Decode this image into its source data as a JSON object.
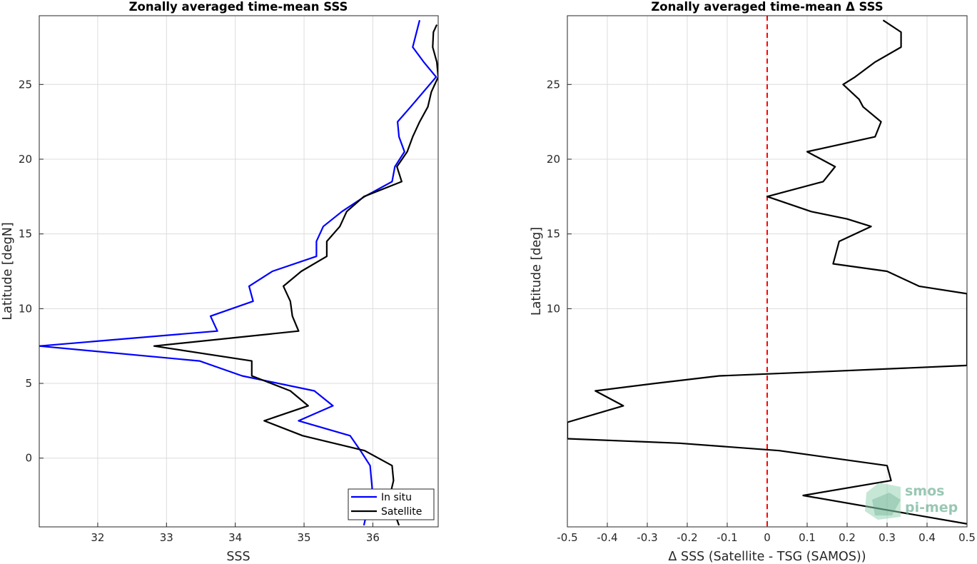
{
  "chart_data": [
    {
      "type": "line",
      "title": "Zonally averaged time-mean SSS",
      "xlabel": "SSS",
      "ylabel": "Latitude [degN]",
      "xlim": [
        31.15,
        36.95
      ],
      "ylim": [
        -4.6,
        29.6
      ],
      "xticks": [
        32,
        33,
        34,
        35,
        36
      ],
      "yticks": [
        0,
        5,
        10,
        15,
        20,
        25
      ],
      "grid": true,
      "legend": "bottom-right",
      "series": [
        {
          "name": "In situ",
          "color": "#0000ff",
          "points": [
            [
              36.68,
              29.3
            ],
            [
              36.58,
              27.5
            ],
            [
              36.74,
              26.5
            ],
            [
              36.92,
              25.5
            ],
            [
              36.55,
              23.5
            ],
            [
              36.36,
              22.5
            ],
            [
              36.38,
              21.5
            ],
            [
              36.46,
              20.5
            ],
            [
              36.32,
              19.5
            ],
            [
              36.28,
              18.5
            ],
            [
              35.88,
              17.5
            ],
            [
              35.55,
              16.5
            ],
            [
              35.28,
              15.5
            ],
            [
              35.18,
              14.5
            ],
            [
              35.18,
              13.5
            ],
            [
              34.54,
              12.5
            ],
            [
              34.2,
              11.5
            ],
            [
              34.26,
              10.5
            ],
            [
              33.64,
              9.5
            ],
            [
              33.74,
              8.5
            ],
            [
              31.15,
              7.5
            ],
            [
              33.48,
              6.5
            ],
            [
              34.1,
              5.5
            ],
            [
              35.15,
              4.5
            ],
            [
              35.42,
              3.5
            ],
            [
              34.92,
              2.5
            ],
            [
              35.67,
              1.5
            ],
            [
              35.82,
              0.5
            ],
            [
              35.96,
              -0.5
            ],
            [
              35.98,
              -1.5
            ],
            [
              36.0,
              -2.5
            ],
            [
              35.92,
              -3.5
            ],
            [
              35.87,
              -4.5
            ]
          ]
        },
        {
          "name": "Satellite",
          "color": "#000000",
          "points": [
            [
              36.93,
              29.0
            ],
            [
              36.88,
              28.5
            ],
            [
              36.87,
              27.5
            ],
            [
              36.93,
              26.5
            ],
            [
              36.95,
              25.5
            ],
            [
              36.85,
              24.5
            ],
            [
              36.8,
              23.5
            ],
            [
              36.68,
              22.5
            ],
            [
              36.58,
              21.5
            ],
            [
              36.5,
              20.5
            ],
            [
              36.35,
              19.5
            ],
            [
              36.42,
              18.5
            ],
            [
              35.87,
              17.5
            ],
            [
              35.62,
              16.5
            ],
            [
              35.52,
              15.5
            ],
            [
              35.33,
              14.5
            ],
            [
              35.33,
              13.5
            ],
            [
              34.96,
              12.5
            ],
            [
              34.7,
              11.5
            ],
            [
              34.8,
              10.5
            ],
            [
              34.83,
              9.5
            ],
            [
              34.92,
              8.5
            ],
            [
              32.82,
              7.5
            ],
            [
              34.24,
              6.5
            ],
            [
              34.24,
              5.5
            ],
            [
              34.8,
              4.5
            ],
            [
              35.06,
              3.5
            ],
            [
              34.42,
              2.5
            ],
            [
              34.98,
              1.5
            ],
            [
              35.88,
              0.5
            ],
            [
              36.28,
              -0.5
            ],
            [
              36.3,
              -1.5
            ],
            [
              36.25,
              -2.5
            ],
            [
              36.3,
              -3.5
            ],
            [
              36.38,
              -4.5
            ]
          ]
        }
      ]
    },
    {
      "type": "line",
      "title": "Zonally averaged time-mean Δ SSS",
      "xlabel": "Δ SSS (Satellite - TSG (SAMOS))",
      "ylabel": "Latitude [deg]",
      "xlim": [
        -0.5,
        0.5
      ],
      "ylim": [
        -4.6,
        29.6
      ],
      "xticks": [
        -0.5,
        -0.4,
        -0.3,
        -0.2,
        -0.1,
        0,
        0.1,
        0.2,
        0.3,
        0.4,
        0.5
      ],
      "xticklabels": [
        "-0.5",
        "-0.4",
        "-0.3",
        "-0.2",
        "-0.1",
        "0",
        "0.1",
        "0.2",
        "0.3",
        "0.4",
        "0.5"
      ],
      "yticks": [
        10,
        15,
        20,
        25
      ],
      "grid": true,
      "reference_line": {
        "x": 0,
        "color": "#ff0000",
        "style": "dashed"
      },
      "series": [
        {
          "color": "#000000",
          "points": [
            [
              0.29,
              29.3
            ],
            [
              0.335,
              28.5
            ],
            [
              0.335,
              27.5
            ],
            [
              0.27,
              26.5
            ],
            [
              0.22,
              25.5
            ],
            [
              0.19,
              25.0
            ],
            [
              0.23,
              24.0
            ],
            [
              0.24,
              23.5
            ],
            [
              0.285,
              22.5
            ],
            [
              0.27,
              21.5
            ],
            [
              0.1,
              20.5
            ],
            [
              0.17,
              19.5
            ],
            [
              0.14,
              18.5
            ],
            [
              0.0,
              17.5
            ],
            [
              0.11,
              16.5
            ],
            [
              0.2,
              16.0
            ],
            [
              0.26,
              15.5
            ],
            [
              0.18,
              14.5
            ],
            [
              0.17,
              13.5
            ],
            [
              0.165,
              13.0
            ],
            [
              0.3,
              12.5
            ],
            [
              0.38,
              11.5
            ],
            [
              0.5,
              11.0
            ],
            [
              0.5,
              6.2
            ],
            [
              0.15,
              5.8
            ],
            [
              -0.12,
              5.5
            ],
            [
              -0.28,
              5.0
            ],
            [
              -0.43,
              4.5
            ],
            [
              -0.36,
              3.5
            ],
            [
              -0.5,
              2.4
            ],
            [
              -0.5,
              1.3
            ],
            [
              -0.22,
              1.0
            ],
            [
              0.03,
              0.5
            ],
            [
              0.3,
              -0.5
            ],
            [
              0.31,
              -1.5
            ],
            [
              0.09,
              -2.5
            ],
            [
              0.5,
              -4.4
            ]
          ]
        }
      ]
    }
  ],
  "logo": {
    "line1": "smos",
    "line2": "pi-mep"
  }
}
